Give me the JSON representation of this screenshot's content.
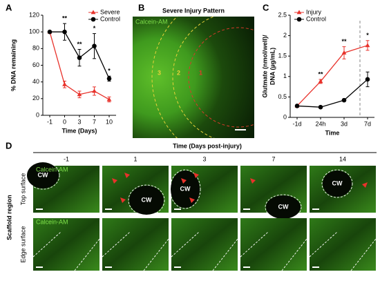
{
  "panel_labels": [
    "A",
    "B",
    "C",
    "D"
  ],
  "chart_data": [
    {
      "type": "line",
      "xlabel": "Time (Days)",
      "ylabel": "% DNA remaining",
      "categories": [
        "-1",
        "0",
        "3",
        "7",
        "10"
      ],
      "ylim": [
        0,
        120
      ],
      "yticks": [
        0,
        20,
        40,
        60,
        80,
        100,
        120
      ],
      "legend": "upper right",
      "series": [
        {
          "name": "Severe",
          "color": "#e8322b",
          "marker": "triangle",
          "values": [
            100,
            37,
            25,
            29,
            19
          ],
          "errors": [
            0,
            4,
            4,
            5,
            3
          ]
        },
        {
          "name": "Control",
          "color": "#000000",
          "marker": "circle",
          "values": [
            100,
            100,
            69,
            83,
            44
          ],
          "errors": [
            0,
            10,
            10,
            15,
            3
          ]
        }
      ],
      "annotations": [
        {
          "text": "**",
          "category": "0"
        },
        {
          "text": "**",
          "category": "3"
        },
        {
          "text": "*",
          "category": "7"
        },
        {
          "text": "*",
          "category": "10"
        }
      ]
    },
    {
      "type": "line",
      "xlabel": "Time",
      "ylabel": [
        "Glutmate (nmol/well)/",
        "DNA (µg/mL)"
      ],
      "categories": [
        "-1d",
        "24h",
        "3d",
        "7d"
      ],
      "ylim": [
        0,
        2.5
      ],
      "yticks": [
        0,
        0.5,
        1,
        1.5,
        2,
        2.5
      ],
      "legend": "upper left",
      "series": [
        {
          "name": "Injury",
          "color": "#e8322b",
          "marker": "triangle",
          "values": [
            0.28,
            0.88,
            1.58,
            1.76
          ],
          "errors": [
            0.02,
            0.05,
            0.15,
            0.12
          ]
        },
        {
          "name": "Control",
          "color": "#000000",
          "marker": "circle",
          "values": [
            0.28,
            0.25,
            0.42,
            0.93
          ],
          "errors": [
            0.02,
            0.02,
            0.03,
            0.18
          ]
        }
      ],
      "annotations": [
        {
          "text": "**",
          "category": "24h"
        },
        {
          "text": "**",
          "category": "3d"
        },
        {
          "text": "*",
          "category": "7d"
        }
      ]
    }
  ],
  "panel_b": {
    "title": "Severe Injury Pattern",
    "stain_label": "Calcein-AM",
    "zones": [
      "3",
      "2",
      "1"
    ]
  },
  "panel_d": {
    "title": "Time (Days post-injury)",
    "columns": [
      "-1",
      "1",
      "3",
      "7",
      "14"
    ],
    "region_label": "Scaffold region",
    "rows": [
      "Top surface",
      "Edge surface"
    ],
    "stain_label": "Calcein-AM",
    "cw_label": "CW"
  }
}
